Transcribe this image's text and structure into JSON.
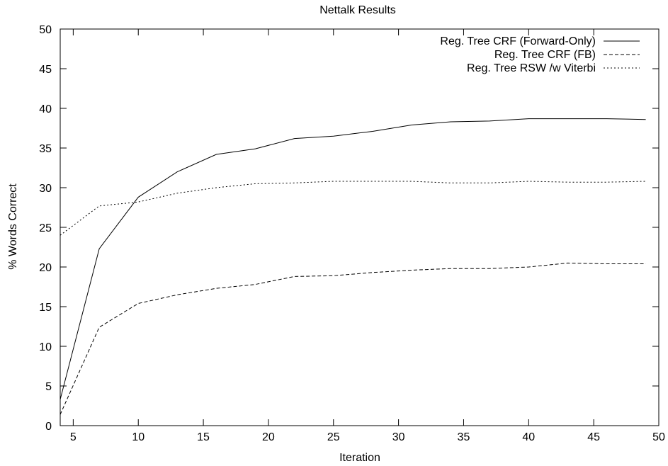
{
  "chart_data": {
    "type": "line",
    "title": "Nettalk Results",
    "xlabel": "Iteration",
    "ylabel": "% Words Correct",
    "xlim": [
      4,
      50
    ],
    "ylim": [
      0,
      50
    ],
    "xticks": [
      5,
      10,
      15,
      20,
      25,
      30,
      35,
      40,
      45,
      50
    ],
    "yticks": [
      0,
      5,
      10,
      15,
      20,
      25,
      30,
      35,
      40,
      45,
      50
    ],
    "grid": false,
    "legend_position": "top-right",
    "series": [
      {
        "name": "Reg. Tree CRF (Forward-Only)",
        "style": "solid",
        "x": [
          4,
          7,
          10,
          13,
          16,
          19,
          22,
          25,
          28,
          31,
          34,
          37,
          40,
          43,
          46,
          49
        ],
        "y": [
          3.3,
          22.3,
          28.8,
          32.0,
          34.2,
          34.9,
          36.2,
          36.5,
          37.1,
          37.9,
          38.3,
          38.4,
          38.7,
          38.7,
          38.7,
          38.6
        ]
      },
      {
        "name": "Reg. Tree CRF (FB)",
        "style": "dashed",
        "x": [
          4,
          7,
          10,
          13,
          16,
          19,
          22,
          25,
          28,
          31,
          34,
          37,
          40,
          43,
          46,
          49
        ],
        "y": [
          1.4,
          12.4,
          15.4,
          16.5,
          17.3,
          17.8,
          18.8,
          18.9,
          19.3,
          19.6,
          19.8,
          19.8,
          20.0,
          20.5,
          20.4,
          20.4
        ]
      },
      {
        "name": "Reg. Tree RSW /w Viterbi",
        "style": "dotted",
        "x": [
          4,
          7,
          10,
          13,
          16,
          19,
          22,
          25,
          28,
          31,
          34,
          37,
          40,
          43,
          46,
          49
        ],
        "y": [
          24.0,
          27.7,
          28.2,
          29.3,
          30.0,
          30.5,
          30.6,
          30.8,
          30.8,
          30.8,
          30.6,
          30.6,
          30.8,
          30.7,
          30.7,
          30.8
        ]
      }
    ]
  }
}
